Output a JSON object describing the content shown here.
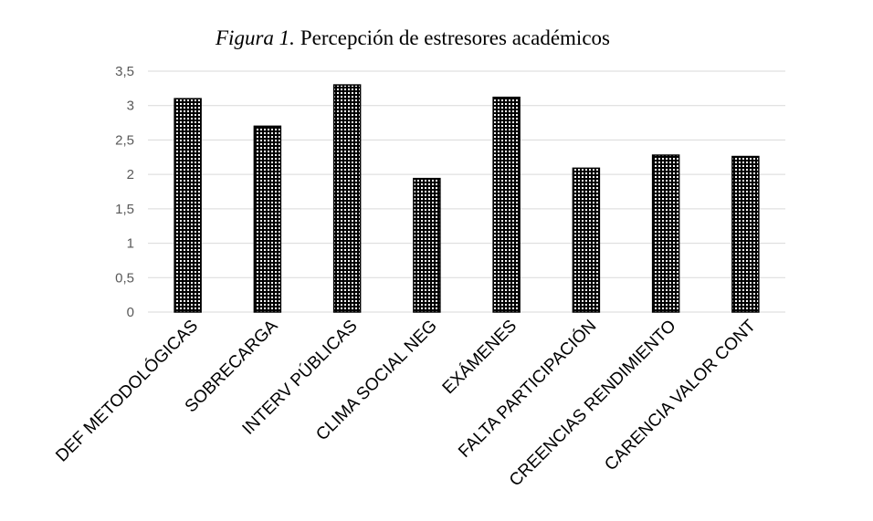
{
  "chart_data": {
    "type": "bar",
    "title_prefix": "Figura 1.",
    "title": "Percepción de estresores académicos",
    "xlabel": "",
    "ylabel": "",
    "categories": [
      "DEF METODOLÓGICAS",
      "SOBRECARGA",
      "INTERV PÚBLICAS",
      "CLIMA SOCIAL NEG",
      "EXÁMENES",
      "FALTA PARTICIPACIÓN",
      "CREENCIAS RENDIMIENTO",
      "CARENCIA VALOR CONT"
    ],
    "values": [
      3.1,
      2.7,
      3.3,
      1.94,
      3.12,
      2.09,
      2.28,
      2.26
    ],
    "yticks": [
      "0",
      "0,5",
      "1",
      "1,5",
      "2",
      "2,5",
      "3",
      "3,5"
    ],
    "ylim": [
      0,
      3.5
    ],
    "grid": true,
    "legend": "none",
    "colors": {
      "bar_fill": "#000000",
      "bar_dots": "#ffffff",
      "grid": "#d9d9d9",
      "tick_text": "#595959"
    }
  }
}
